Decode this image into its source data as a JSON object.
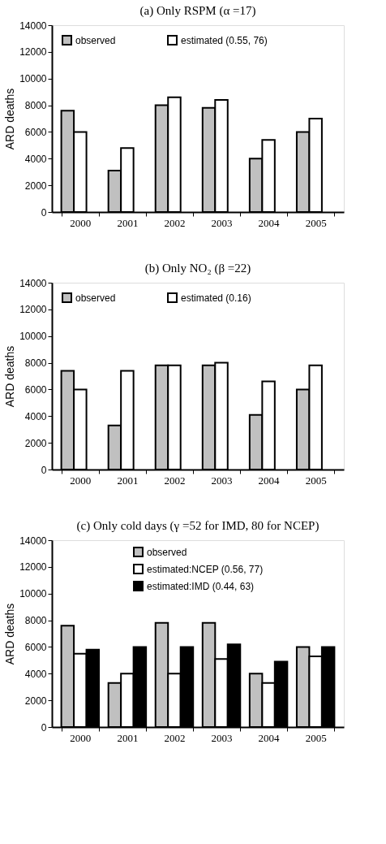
{
  "chart_data": [
    {
      "type": "bar",
      "title": "(a) Only RSPM (α =17)",
      "ylabel": "ARD deaths",
      "categories": [
        "2000",
        "2001",
        "2002",
        "2003",
        "2004",
        "2005"
      ],
      "ylim": [
        0,
        14000
      ],
      "yticks": [
        0,
        2000,
        4000,
        6000,
        8000,
        10000,
        12000,
        14000
      ],
      "grid": false,
      "legend": "top left",
      "series": [
        {
          "name": "observed",
          "color": "#c0c0c0",
          "values": [
            7600,
            3100,
            8000,
            7800,
            4000,
            6000
          ]
        },
        {
          "name": "estimated (0.55, 76)",
          "color": "#ffffff",
          "values": [
            6000,
            4800,
            8600,
            8400,
            5400,
            7000
          ]
        }
      ]
    },
    {
      "type": "bar",
      "title": "(b) Only NO₂ (β =22)",
      "ylabel": "ARD deaths",
      "categories": [
        "2000",
        "2001",
        "2002",
        "2003",
        "2004",
        "2005"
      ],
      "ylim": [
        0,
        14000
      ],
      "yticks": [
        0,
        2000,
        4000,
        6000,
        8000,
        10000,
        12000,
        14000
      ],
      "grid": false,
      "legend": "top left",
      "series": [
        {
          "name": "observed",
          "color": "#c0c0c0",
          "values": [
            7400,
            3300,
            7800,
            7800,
            4100,
            6000
          ]
        },
        {
          "name": "estimated (0.16)",
          "color": "#ffffff",
          "values": [
            6000,
            7400,
            7800,
            8000,
            6600,
            7800
          ]
        }
      ]
    },
    {
      "type": "bar",
      "title": "(c) Only cold days (γ =52 for IMD, 80 for NCEP)",
      "ylabel": "ARD deaths",
      "categories": [
        "2000",
        "2001",
        "2002",
        "2003",
        "2004",
        "2005"
      ],
      "ylim": [
        0,
        14000
      ],
      "yticks": [
        0,
        2000,
        4000,
        6000,
        8000,
        10000,
        12000,
        14000
      ],
      "grid": false,
      "legend": "top",
      "series": [
        {
          "name": "observed",
          "color": "#c0c0c0",
          "values": [
            7600,
            3300,
            7800,
            7800,
            4000,
            6000
          ]
        },
        {
          "name": "estimated:NCEP (0.56, 77)",
          "color": "#ffffff",
          "values": [
            5500,
            4000,
            4000,
            5100,
            3300,
            5300
          ]
        },
        {
          "name": "estimated:IMD (0.44, 63)",
          "color": "#000000",
          "values": [
            5800,
            6000,
            6000,
            6200,
            4900,
            6000
          ]
        }
      ]
    }
  ]
}
